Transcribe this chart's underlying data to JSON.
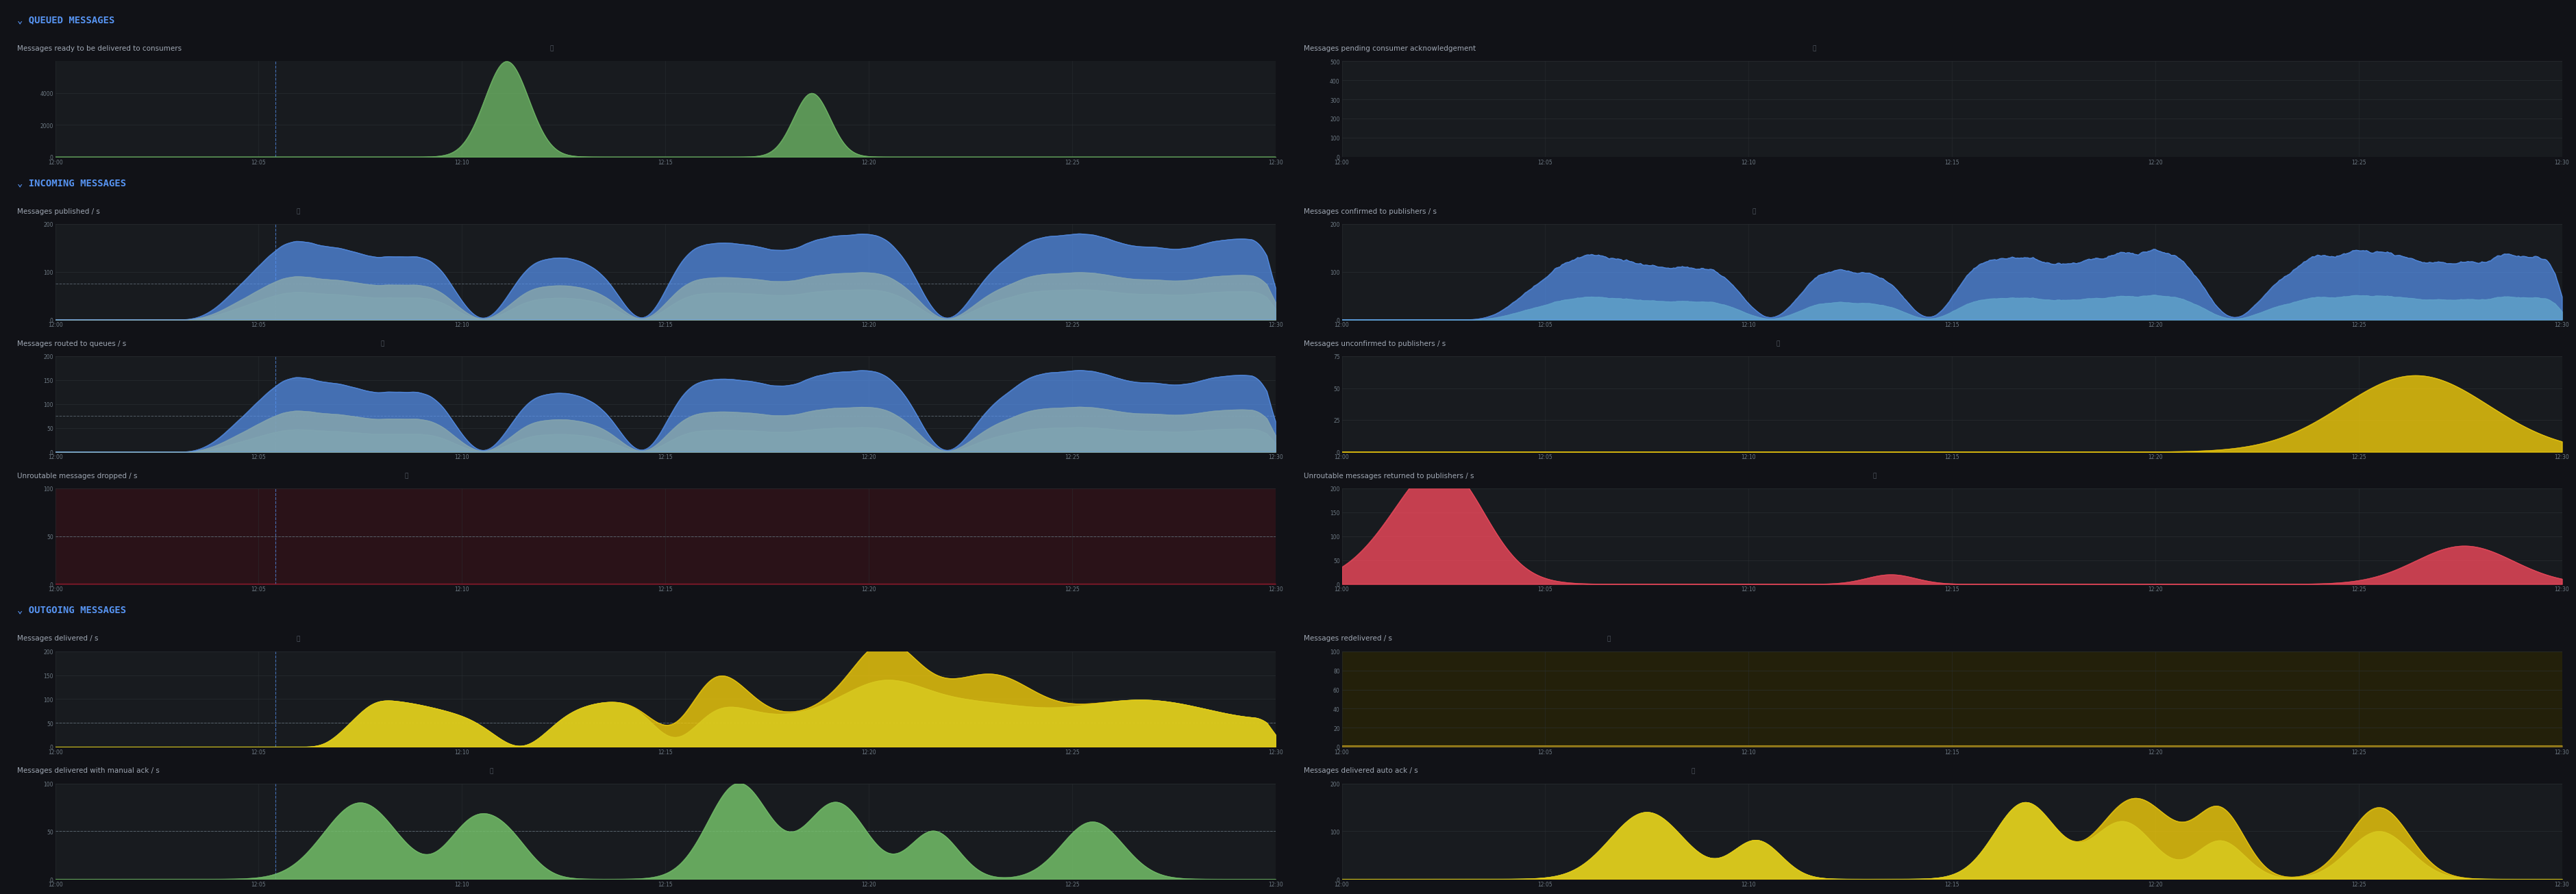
{
  "background_color": "#111217",
  "panel_bg": "#181b1f",
  "section_bg": "#1a1d23",
  "text_color": "#d8d9da",
  "section_header_color": "#5794f2",
  "subtitle_color": "#9fa7b3",
  "grid_color": "#2c3235",
  "axis_color": "#6e7a84",
  "dashed_line_color": "#5794f2",
  "zero_line_color": "#3b82f0",
  "dashed_thresh_color": "#7a8a96",
  "time_labels_full": [
    "12:00",
    "12:05",
    "12:10",
    "12:15",
    "12:20",
    "12:25",
    "12:30"
  ],
  "n_points": 700
}
